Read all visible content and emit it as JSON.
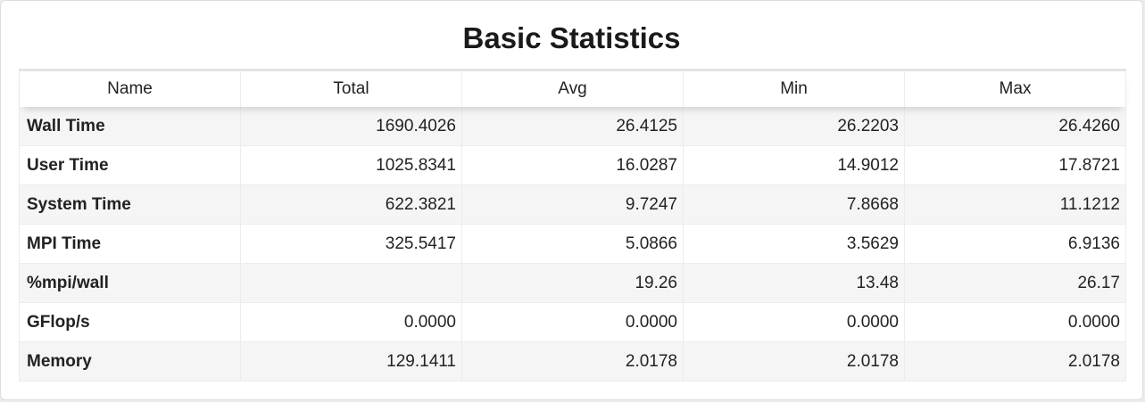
{
  "title": "Basic Statistics",
  "columns": [
    "Name",
    "Total",
    "Avg",
    "Min",
    "Max"
  ],
  "rows": [
    {
      "name": "Wall Time",
      "total": "1690.4026",
      "avg": "26.4125",
      "min": "26.2203",
      "max": "26.4260"
    },
    {
      "name": "User Time",
      "total": "1025.8341",
      "avg": "16.0287",
      "min": "14.9012",
      "max": "17.8721"
    },
    {
      "name": "System Time",
      "total": "622.3821",
      "avg": "9.7247",
      "min": "7.8668",
      "max": "11.1212"
    },
    {
      "name": "MPI Time",
      "total": "325.5417",
      "avg": "5.0866",
      "min": "3.5629",
      "max": "6.9136"
    },
    {
      "name": "%mpi/wall",
      "total": "",
      "avg": "19.26",
      "min": "13.48",
      "max": "26.17"
    },
    {
      "name": "GFlop/s",
      "total": "0.0000",
      "avg": "0.0000",
      "min": "0.0000",
      "max": "0.0000"
    },
    {
      "name": "Memory",
      "total": "129.1411",
      "avg": "2.0178",
      "min": "2.0178",
      "max": "2.0178"
    }
  ]
}
